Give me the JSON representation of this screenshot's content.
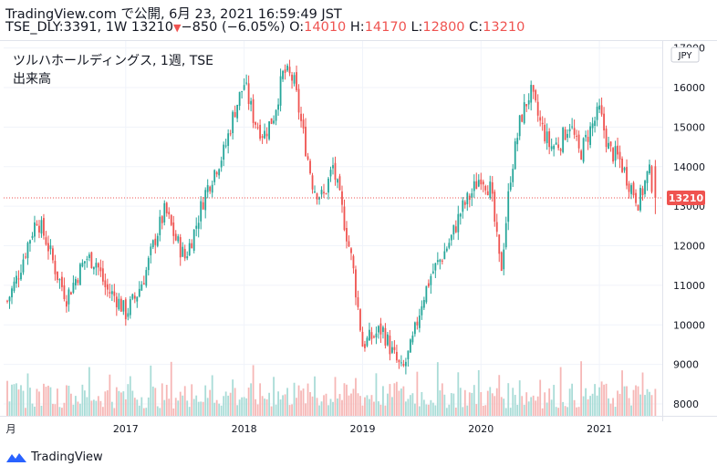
{
  "header": {
    "source": "TradingView.com で公開, 6月 23, 2021 16:59:49 JST",
    "symbol": "TSE_DLY:3391, 1W",
    "last": "13210",
    "change_arrow": "▼",
    "change": "−850 (−6.05%)",
    "o_label": "O:",
    "o_value": "14010",
    "h_label": "H:",
    "h_value": "14170",
    "l_label": "L:",
    "l_value": "12800",
    "c_label": "C:",
    "c_value": "13210"
  },
  "legend": {
    "title": "ツルハホールディングス, 1週, TSE",
    "volume_label": "出来高"
  },
  "currency_badge": "JPY",
  "price_label": "13210",
  "branding": "TradingView",
  "colors": {
    "up": "#26a69a",
    "down": "#ef5350",
    "vol_up": "#a9dcd7",
    "vol_down": "#f6b7b6",
    "price_line": "#ef5350",
    "axis_text": "#131722",
    "border": "#e0e3eb"
  },
  "chart_data": {
    "type": "candlestick",
    "interval": "1W",
    "y_axis": {
      "ticks": [
        8000,
        9000,
        10000,
        11000,
        12000,
        13000,
        14000,
        15000,
        16000,
        17000
      ],
      "range": [
        7700,
        17200
      ]
    },
    "x_axis": {
      "ticks": [
        "月",
        "2017",
        "2018",
        "2019",
        "2020",
        "2021"
      ],
      "range": [
        "2016-01",
        "2021-07"
      ]
    },
    "last_price": 13210,
    "close_path": [
      [
        "2016-01",
        10600
      ],
      [
        "2016-02",
        11200
      ],
      [
        "2016-03",
        12000
      ],
      [
        "2016-04",
        12700
      ],
      [
        "2016-05",
        12100
      ],
      [
        "2016-06",
        11300
      ],
      [
        "2016-07",
        10700
      ],
      [
        "2016-08",
        11200
      ],
      [
        "2016-09",
        11700
      ],
      [
        "2016-10",
        11600
      ],
      [
        "2016-11",
        10900
      ],
      [
        "2016-12",
        10700
      ],
      [
        "2017-01",
        10300
      ],
      [
        "2017-02",
        10700
      ],
      [
        "2017-03",
        11300
      ],
      [
        "2017-04",
        12200
      ],
      [
        "2017-05",
        12900
      ],
      [
        "2017-06",
        12200
      ],
      [
        "2017-07",
        11700
      ],
      [
        "2017-08",
        12400
      ],
      [
        "2017-09",
        13300
      ],
      [
        "2017-10",
        13900
      ],
      [
        "2017-11",
        14400
      ],
      [
        "2017-12",
        15400
      ],
      [
        "2018-01",
        16100
      ],
      [
        "2018-02",
        15200
      ],
      [
        "2018-03",
        14800
      ],
      [
        "2018-04",
        15300
      ],
      [
        "2018-05",
        16400
      ],
      [
        "2018-06",
        16200
      ],
      [
        "2018-07",
        14800
      ],
      [
        "2018-08",
        13500
      ],
      [
        "2018-09",
        13200
      ],
      [
        "2018-10",
        14000
      ],
      [
        "2018-11",
        12800
      ],
      [
        "2018-12",
        11500
      ],
      [
        "2019-01",
        9500
      ],
      [
        "2019-02",
        9700
      ],
      [
        "2019-03",
        9900
      ],
      [
        "2019-04",
        9300
      ],
      [
        "2019-05",
        8800
      ],
      [
        "2019-06",
        9500
      ],
      [
        "2019-07",
        10600
      ],
      [
        "2019-08",
        11300
      ],
      [
        "2019-09",
        11700
      ],
      [
        "2019-10",
        12200
      ],
      [
        "2019-11",
        12900
      ],
      [
        "2019-12",
        13300
      ],
      [
        "2020-01",
        13800
      ],
      [
        "2020-02",
        13400
      ],
      [
        "2020-03",
        11300
      ],
      [
        "2020-04",
        13800
      ],
      [
        "2020-05",
        15200
      ],
      [
        "2020-06",
        15900
      ],
      [
        "2020-07",
        15100
      ],
      [
        "2020-08",
        14500
      ],
      [
        "2020-09",
        14600
      ],
      [
        "2020-10",
        15100
      ],
      [
        "2020-11",
        14300
      ],
      [
        "2020-12",
        14900
      ],
      [
        "2021-01",
        15400
      ],
      [
        "2021-02",
        14400
      ],
      [
        "2021-03",
        14200
      ],
      [
        "2021-04",
        13600
      ],
      [
        "2021-05",
        13100
      ],
      [
        "2021-06",
        13900
      ],
      [
        "2021-06-21",
        13210
      ]
    ],
    "last_candle": {
      "date": "2021-06-21",
      "open": 14010,
      "high": 14170,
      "low": 12800,
      "close": 13210
    }
  }
}
